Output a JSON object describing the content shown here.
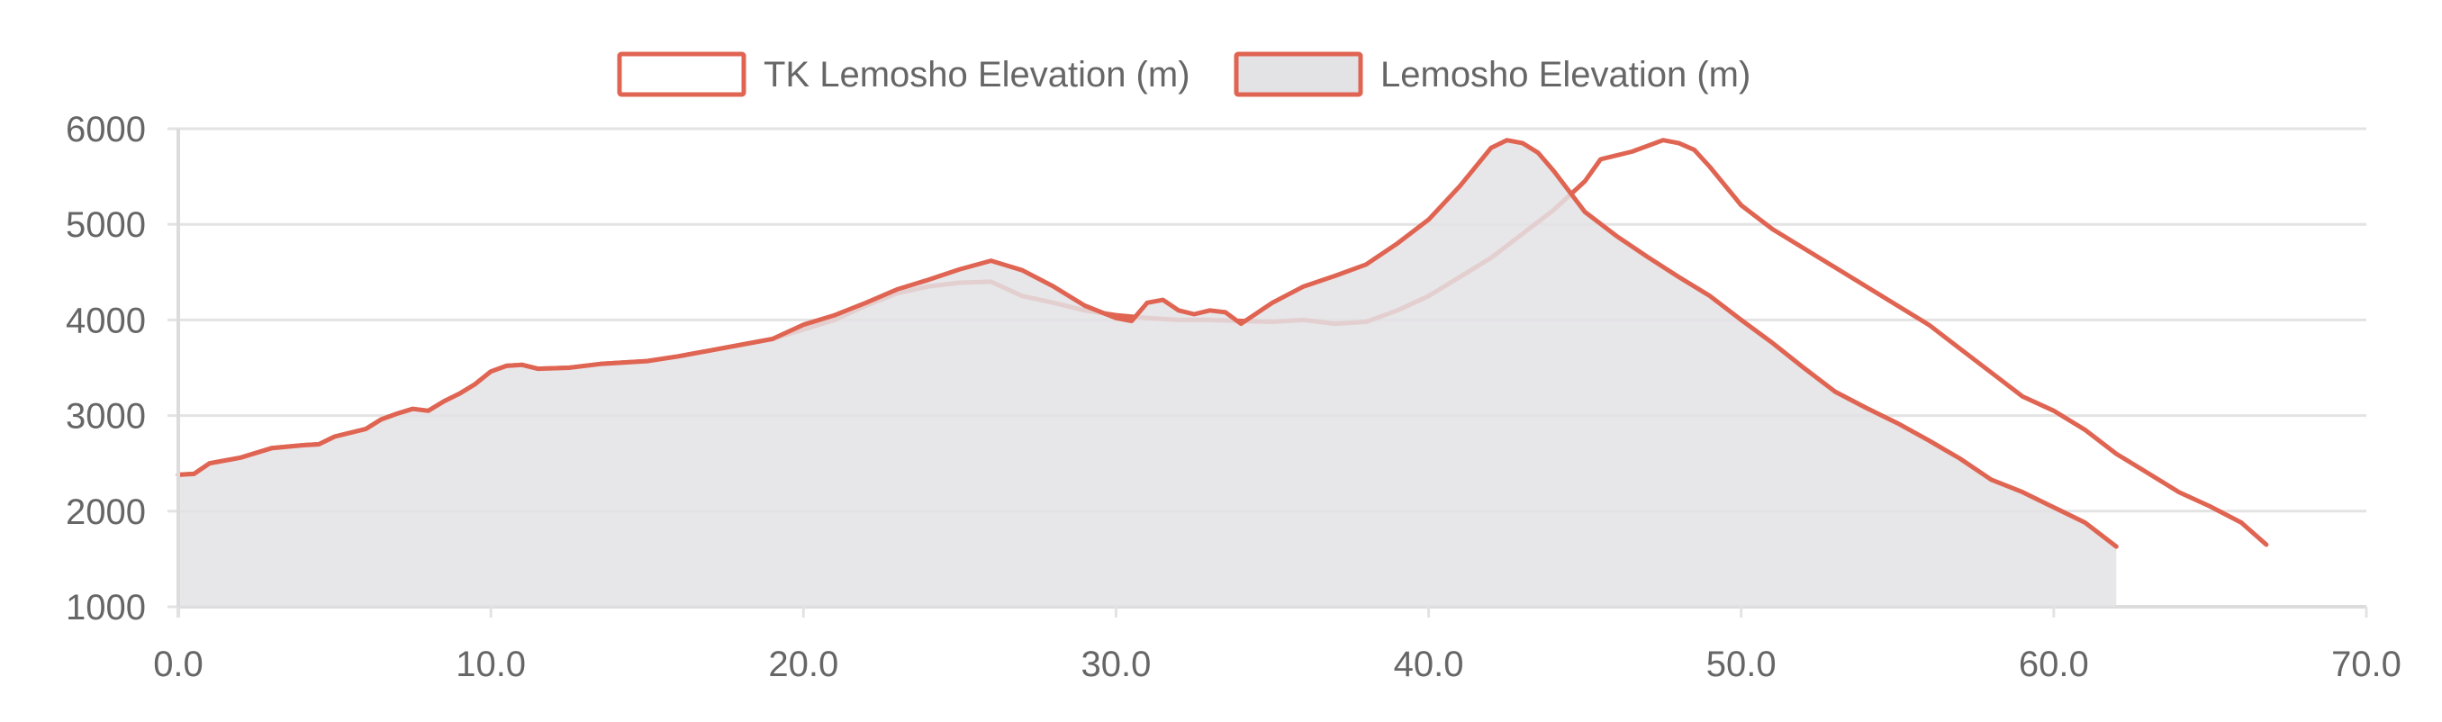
{
  "chart_data": {
    "type": "line",
    "title": "",
    "xlabel": "",
    "ylabel": "",
    "xlim": [
      0,
      70
    ],
    "ylim": [
      1000,
      6000
    ],
    "x_ticks": [
      0,
      10,
      20,
      30,
      40,
      50,
      60,
      70
    ],
    "x_tick_labels": [
      "0.0",
      "10.0",
      "20.0",
      "30.0",
      "40.0",
      "50.0",
      "60.0",
      "70.0"
    ],
    "y_ticks": [
      1000,
      2000,
      3000,
      4000,
      5000,
      6000
    ],
    "y_tick_labels": [
      "1000",
      "2000",
      "3000",
      "4000",
      "5000",
      "6000"
    ],
    "grid": true,
    "legend_position": "top-center",
    "line_color": "#e06452",
    "fill_color": "#e3e2e5",
    "series": [
      {
        "name": "TK Lemosho Elevation (m)",
        "fill": false,
        "points": [
          [
            0,
            2380
          ],
          [
            0.5,
            2390
          ],
          [
            1,
            2500
          ],
          [
            2,
            2560
          ],
          [
            3,
            2660
          ],
          [
            4,
            2690
          ],
          [
            4.5,
            2700
          ],
          [
            5,
            2780
          ],
          [
            6,
            2860
          ],
          [
            6.5,
            2960
          ],
          [
            7,
            3020
          ],
          [
            7.5,
            3070
          ],
          [
            8,
            3050
          ],
          [
            8.5,
            3150
          ],
          [
            9,
            3230
          ],
          [
            9.5,
            3330
          ],
          [
            10,
            3460
          ],
          [
            10.5,
            3520
          ],
          [
            11,
            3530
          ],
          [
            11.5,
            3490
          ],
          [
            12.5,
            3500
          ],
          [
            13.5,
            3540
          ],
          [
            15,
            3570
          ],
          [
            16,
            3620
          ],
          [
            17,
            3680
          ],
          [
            18,
            3740
          ],
          [
            19,
            3800
          ],
          [
            20,
            3900
          ],
          [
            21,
            4000
          ],
          [
            22,
            4150
          ],
          [
            23,
            4280
          ],
          [
            24,
            4350
          ],
          [
            25,
            4390
          ],
          [
            26,
            4400
          ],
          [
            27,
            4250
          ],
          [
            28,
            4180
          ],
          [
            29,
            4100
          ],
          [
            30,
            4050
          ],
          [
            31,
            4020
          ],
          [
            32,
            4000
          ],
          [
            33,
            4000
          ],
          [
            34,
            3990
          ],
          [
            35,
            3980
          ],
          [
            36,
            4000
          ],
          [
            37,
            3960
          ],
          [
            38,
            3980
          ],
          [
            39,
            4100
          ],
          [
            40,
            4250
          ],
          [
            41,
            4450
          ],
          [
            42,
            4650
          ],
          [
            43,
            4900
          ],
          [
            44,
            5150
          ],
          [
            45,
            5450
          ],
          [
            45.5,
            5680
          ],
          [
            46,
            5720
          ],
          [
            46.5,
            5760
          ],
          [
            47,
            5820
          ],
          [
            47.5,
            5880
          ],
          [
            48,
            5850
          ],
          [
            48.5,
            5780
          ],
          [
            49,
            5600
          ],
          [
            50,
            5200
          ],
          [
            51,
            4950
          ],
          [
            52,
            4750
          ],
          [
            53,
            4550
          ],
          [
            54,
            4350
          ],
          [
            55,
            4150
          ],
          [
            56,
            3950
          ],
          [
            57,
            3700
          ],
          [
            58,
            3450
          ],
          [
            59,
            3200
          ],
          [
            60,
            3050
          ],
          [
            61,
            2850
          ],
          [
            62,
            2600
          ],
          [
            63,
            2400
          ],
          [
            64,
            2200
          ],
          [
            65,
            2050
          ],
          [
            66,
            1880
          ],
          [
            66.8,
            1650
          ]
        ]
      },
      {
        "name": "Lemosho Elevation (m)",
        "fill": true,
        "points": [
          [
            0,
            2380
          ],
          [
            0.5,
            2390
          ],
          [
            1,
            2500
          ],
          [
            2,
            2560
          ],
          [
            3,
            2660
          ],
          [
            4,
            2690
          ],
          [
            4.5,
            2700
          ],
          [
            5,
            2780
          ],
          [
            6,
            2860
          ],
          [
            6.5,
            2960
          ],
          [
            7,
            3020
          ],
          [
            7.5,
            3070
          ],
          [
            8,
            3050
          ],
          [
            8.5,
            3150
          ],
          [
            9,
            3230
          ],
          [
            9.5,
            3330
          ],
          [
            10,
            3460
          ],
          [
            10.5,
            3520
          ],
          [
            11,
            3530
          ],
          [
            11.5,
            3490
          ],
          [
            12.5,
            3500
          ],
          [
            13.5,
            3540
          ],
          [
            15,
            3570
          ],
          [
            16,
            3620
          ],
          [
            17,
            3680
          ],
          [
            18,
            3740
          ],
          [
            19,
            3800
          ],
          [
            20,
            3950
          ],
          [
            21,
            4050
          ],
          [
            22,
            4180
          ],
          [
            23,
            4320
          ],
          [
            24,
            4420
          ],
          [
            25,
            4530
          ],
          [
            26,
            4620
          ],
          [
            26.5,
            4570
          ],
          [
            27,
            4520
          ],
          [
            28,
            4350
          ],
          [
            29,
            4150
          ],
          [
            30,
            4020
          ],
          [
            30.5,
            3990
          ],
          [
            31,
            4180
          ],
          [
            31.5,
            4210
          ],
          [
            32,
            4100
          ],
          [
            32.5,
            4060
          ],
          [
            33,
            4100
          ],
          [
            33.5,
            4080
          ],
          [
            34,
            3960
          ],
          [
            35,
            4180
          ],
          [
            36,
            4350
          ],
          [
            37,
            4460
          ],
          [
            38,
            4580
          ],
          [
            39,
            4800
          ],
          [
            40,
            5050
          ],
          [
            41,
            5400
          ],
          [
            42,
            5800
          ],
          [
            42.5,
            5880
          ],
          [
            43,
            5850
          ],
          [
            43.5,
            5750
          ],
          [
            44,
            5560
          ],
          [
            45,
            5130
          ],
          [
            46,
            4880
          ],
          [
            47,
            4660
          ],
          [
            48,
            4450
          ],
          [
            49,
            4250
          ],
          [
            50,
            4000
          ],
          [
            51,
            3760
          ],
          [
            52,
            3500
          ],
          [
            53,
            3250
          ],
          [
            54,
            3080
          ],
          [
            55,
            2920
          ],
          [
            56,
            2740
          ],
          [
            57,
            2550
          ],
          [
            58,
            2330
          ],
          [
            59,
            2200
          ],
          [
            60,
            2040
          ],
          [
            61,
            1880
          ],
          [
            62,
            1630
          ]
        ]
      }
    ]
  }
}
